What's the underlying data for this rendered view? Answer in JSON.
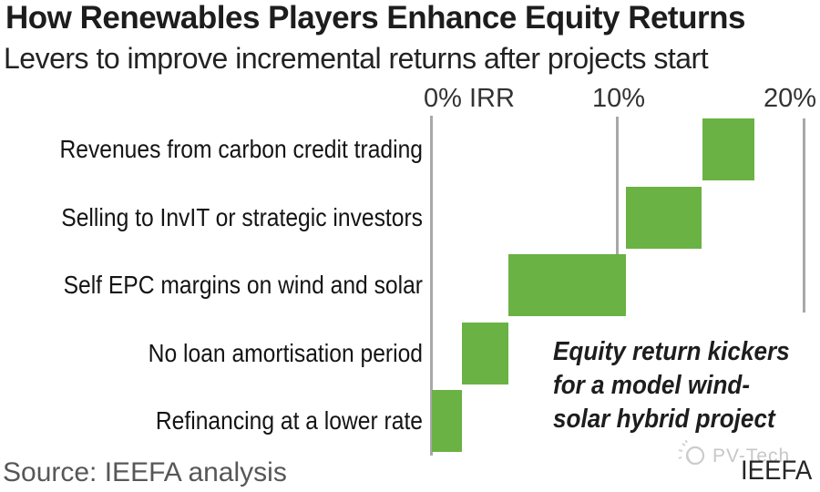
{
  "header": {
    "title": "How Renewables Players Enhance Equity Returns",
    "subtitle": "Levers to improve incremental returns after projects start"
  },
  "chart_data": {
    "type": "bar",
    "subtype": "horizontal_waterfall",
    "title": "How Renewables Players Enhance Equity Returns",
    "xlabel": "IRR (%)",
    "xlim": [
      0,
      20
    ],
    "x_ticks": [
      {
        "value": 0,
        "label": "0% IRR"
      },
      {
        "value": 10,
        "label": "10%"
      },
      {
        "value": 20,
        "label": "20%"
      }
    ],
    "grid": "vertical lines at 0%, 10%, 20%",
    "legend": "none",
    "categories": [
      "Revenues from carbon credit trading",
      "Selling to InvIT or strategic investors",
      "Self EPC margins on wind and solar",
      "No loan amortisation period",
      "Refinancing at a lower rate"
    ],
    "segments": [
      {
        "label": "Revenues from carbon credit trading",
        "start_pct": 14.5,
        "end_pct": 17.3,
        "delta_pct": 2.8
      },
      {
        "label": "Selling to InvIT or strategic investors",
        "start_pct": 10.4,
        "end_pct": 14.5,
        "delta_pct": 4.1
      },
      {
        "label": "Self EPC margins on wind and solar",
        "start_pct": 4.1,
        "end_pct": 10.4,
        "delta_pct": 6.3
      },
      {
        "label": "No loan amortisation period",
        "start_pct": 1.6,
        "end_pct": 4.1,
        "delta_pct": 2.5
      },
      {
        "label": "Refinancing at a lower rate",
        "start_pct": 0,
        "end_pct": 1.6,
        "delta_pct": 1.6
      }
    ],
    "annotation": "Equity return kickers for a model wind-solar hybrid project"
  },
  "annotation": {
    "line1": "Equity return kickers",
    "line2": "for a model wind-",
    "line3": "solar hybrid project"
  },
  "footer": {
    "source": "Source: IEEFA analysis",
    "watermark_text": "PV-Tech",
    "logo_text": "IEEFA"
  },
  "colors": {
    "bar_green": "#6ab243",
    "gridline": "#a8a8a8",
    "text_dark": "#1d1d1d",
    "source_gray": "#575757",
    "watermark_gray": "#c7c7c7"
  }
}
